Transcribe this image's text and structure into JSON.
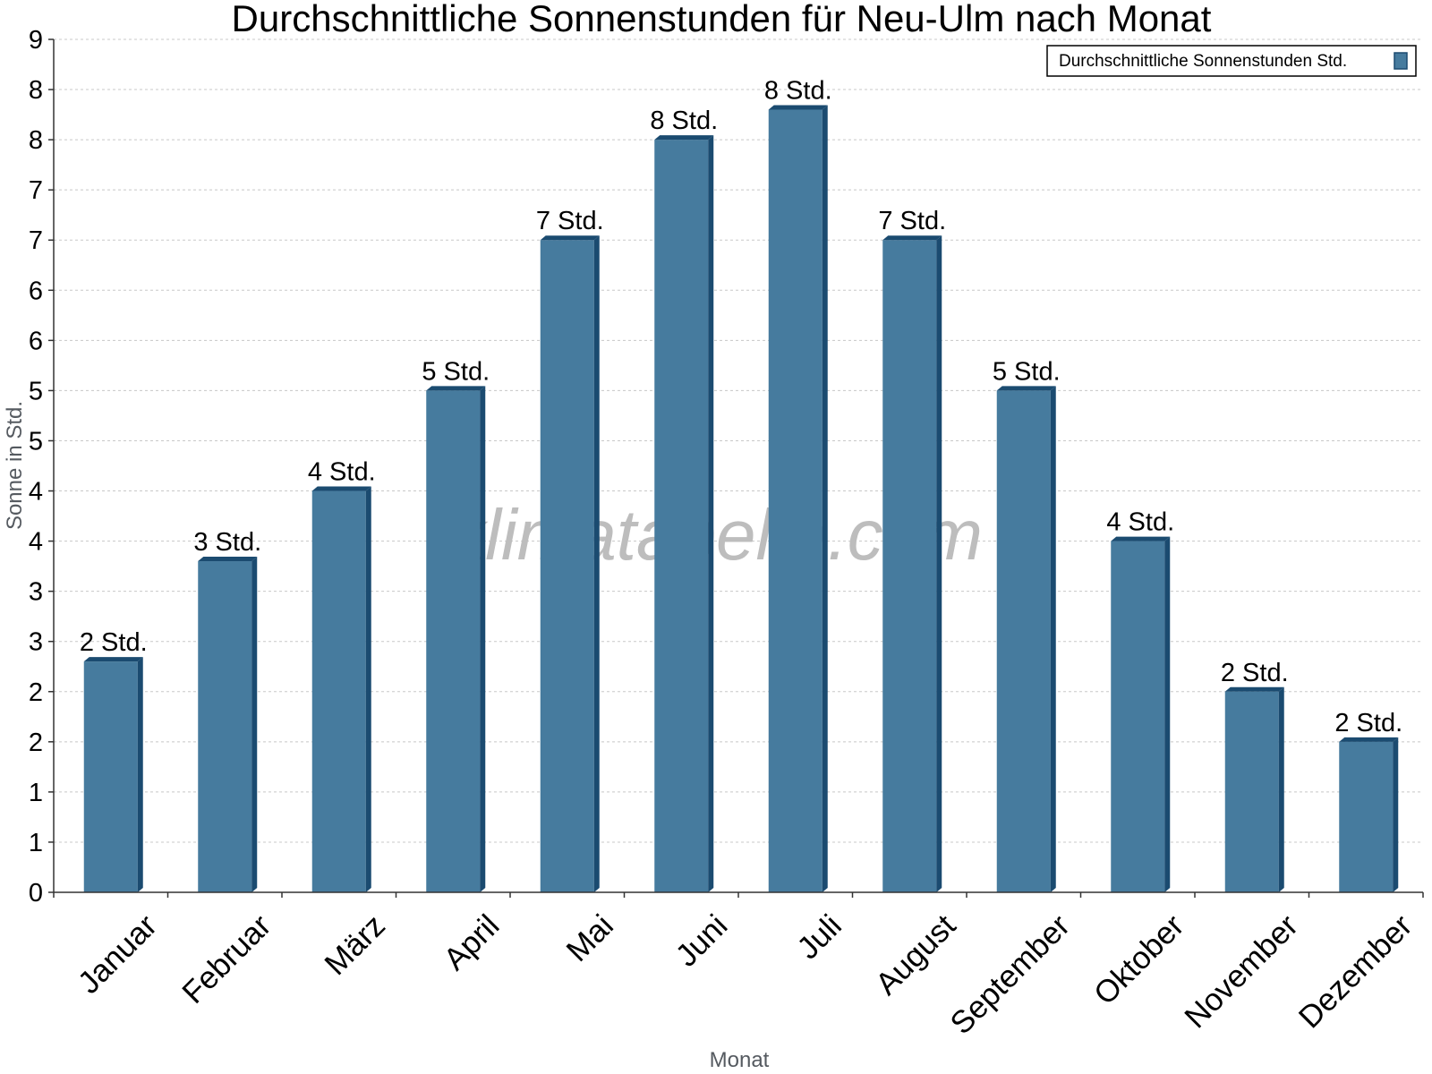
{
  "chart_data": {
    "type": "bar",
    "title": "Durchschnittliche Sonnenstunden für Neu-Ulm nach Monat",
    "xlabel": "Monat",
    "ylabel": "Sonne in Std.",
    "categories": [
      "Januar",
      "Februar",
      "März",
      "April",
      "Mai",
      "Juni",
      "Juli",
      "August",
      "September",
      "Oktober",
      "November",
      "Dezember"
    ],
    "series": [
      {
        "name": "Durchschnittliche Sonnenstunden Std.",
        "values": [
          2.3,
          3.3,
          4.0,
          5.0,
          6.5,
          7.5,
          7.8,
          6.5,
          5.0,
          3.5,
          2.0,
          1.5
        ],
        "labels": [
          "2 Std.",
          "3 Std.",
          "4 Std.",
          "5 Std.",
          "7 Std.",
          "8 Std.",
          "8 Std.",
          "7 Std.",
          "5 Std.",
          "4 Std.",
          "2 Std.",
          "2 Std."
        ]
      }
    ],
    "y_ticks": [
      0,
      0.5,
      1,
      1.5,
      2,
      2.5,
      3,
      3.5,
      4,
      4.5,
      5,
      5.5,
      6,
      6.5,
      7,
      7.5,
      8,
      8.5
    ],
    "y_tick_labels": [
      "0",
      "1",
      "1",
      "2",
      "2",
      "3",
      "3",
      "4",
      "4",
      "5",
      "5",
      "6",
      "6",
      "7",
      "7",
      "8",
      "8",
      "9"
    ],
    "ylim": [
      0,
      8.5
    ],
    "grid": true,
    "legend_position": "top-right",
    "bar_color": "#467b9e",
    "bar_side_color": "#1b4b70",
    "watermark": "klimatabelle.com"
  }
}
